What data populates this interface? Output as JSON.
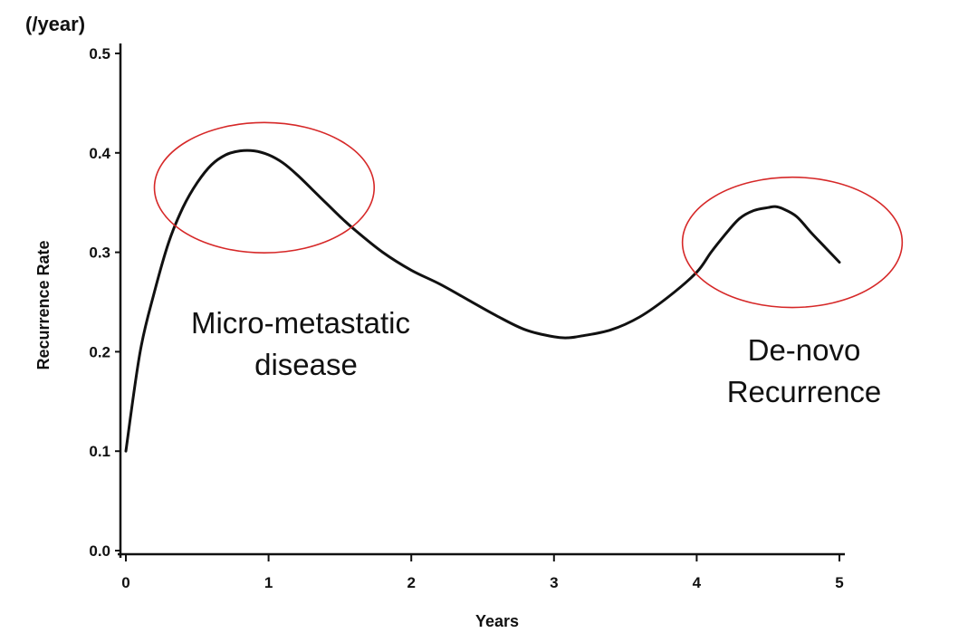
{
  "chart_data": {
    "type": "line",
    "title": "",
    "unit_label": "(/year)",
    "xlabel": "Years",
    "ylabel": "Recurrence Rate",
    "xlim": [
      0,
      5
    ],
    "ylim": [
      0,
      0.5
    ],
    "x_ticks": [
      "0",
      "1",
      "2",
      "3",
      "4",
      "5"
    ],
    "y_ticks": [
      "0.0",
      "0.1",
      "0.2",
      "0.3",
      "0.4",
      "0.5"
    ],
    "grid": false,
    "series": [
      {
        "name": "Recurrence Rate",
        "x": [
          0,
          0.1,
          0.2,
          0.3,
          0.4,
          0.5,
          0.6,
          0.7,
          0.8,
          0.9,
          1.0,
          1.1,
          1.2,
          1.3,
          1.4,
          1.5,
          1.6,
          1.8,
          2.0,
          2.2,
          2.4,
          2.6,
          2.8,
          3.0,
          3.1,
          3.2,
          3.4,
          3.6,
          3.8,
          4.0,
          4.1,
          4.2,
          4.3,
          4.4,
          4.5,
          4.55,
          4.6,
          4.7,
          4.8,
          4.9,
          5.0
        ],
        "y": [
          0.1,
          0.2,
          0.26,
          0.31,
          0.345,
          0.37,
          0.388,
          0.398,
          0.402,
          0.402,
          0.398,
          0.39,
          0.378,
          0.364,
          0.35,
          0.336,
          0.323,
          0.3,
          0.282,
          0.268,
          0.252,
          0.236,
          0.222,
          0.215,
          0.214,
          0.216,
          0.222,
          0.235,
          0.255,
          0.28,
          0.3,
          0.318,
          0.334,
          0.342,
          0.345,
          0.346,
          0.344,
          0.336,
          0.32,
          0.305,
          0.29
        ]
      }
    ],
    "annotations": [
      {
        "name": "micro-metastatic",
        "lines": [
          "Micro-metastatic",
          "disease"
        ],
        "circle_center": [
          0.97,
          0.365
        ],
        "circle_radii": [
          0.77,
          0.0655
        ],
        "circle_color": "#d62828"
      },
      {
        "name": "de-novo",
        "lines": [
          "De-novo",
          "Recurrence"
        ],
        "circle_center": [
          4.67,
          0.31
        ],
        "circle_radii": [
          0.77,
          0.0655
        ],
        "circle_color": "#d62828"
      }
    ]
  },
  "colors": {
    "line": "#111111",
    "axis": "#111111",
    "circle": "#d62828"
  }
}
